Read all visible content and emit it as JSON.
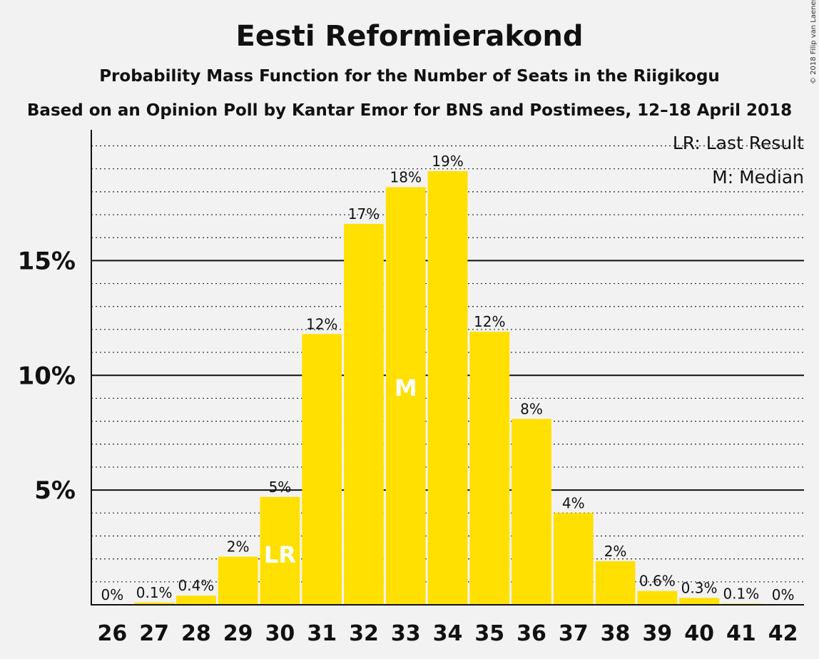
{
  "chart_data": {
    "type": "bar",
    "title": "Eesti Reformierakond",
    "subtitle": "Probability Mass Function for the Number of Seats in the Riigikogu",
    "subtitle2": "Based on an Opinion Poll by Kantar Emor for BNS and Postimees, 12–18 April 2018",
    "copyright": "© 2018 Filip van Laenen",
    "legend": {
      "lr": "LR: Last Result",
      "median": "M: Median",
      "placement": "top-right"
    },
    "categories": [
      "26",
      "27",
      "28",
      "29",
      "30",
      "31",
      "32",
      "33",
      "34",
      "35",
      "36",
      "37",
      "38",
      "39",
      "40",
      "41",
      "42"
    ],
    "values": [
      0,
      0.1,
      0.4,
      2.1,
      4.7,
      11.8,
      16.6,
      18.2,
      18.9,
      11.9,
      8.1,
      4.0,
      1.9,
      0.6,
      0.3,
      0.05,
      0
    ],
    "data_labels": [
      "0%",
      "0.1%",
      "0.4%",
      "2%",
      "5%",
      "12%",
      "17%",
      "18%",
      "19%",
      "12%",
      "8%",
      "4%",
      "2%",
      "0.6%",
      "0.3%",
      "0.1%",
      "0%"
    ],
    "yticks": [
      5,
      10,
      15
    ],
    "ytick_labels": [
      "5%",
      "10%",
      "15%"
    ],
    "ylim": [
      0,
      20.7
    ],
    "minor_grid_step": 1,
    "markers": {
      "30": "LR",
      "33": "M"
    },
    "bar_color": "#ffe000",
    "xlabel": "",
    "ylabel": ""
  }
}
